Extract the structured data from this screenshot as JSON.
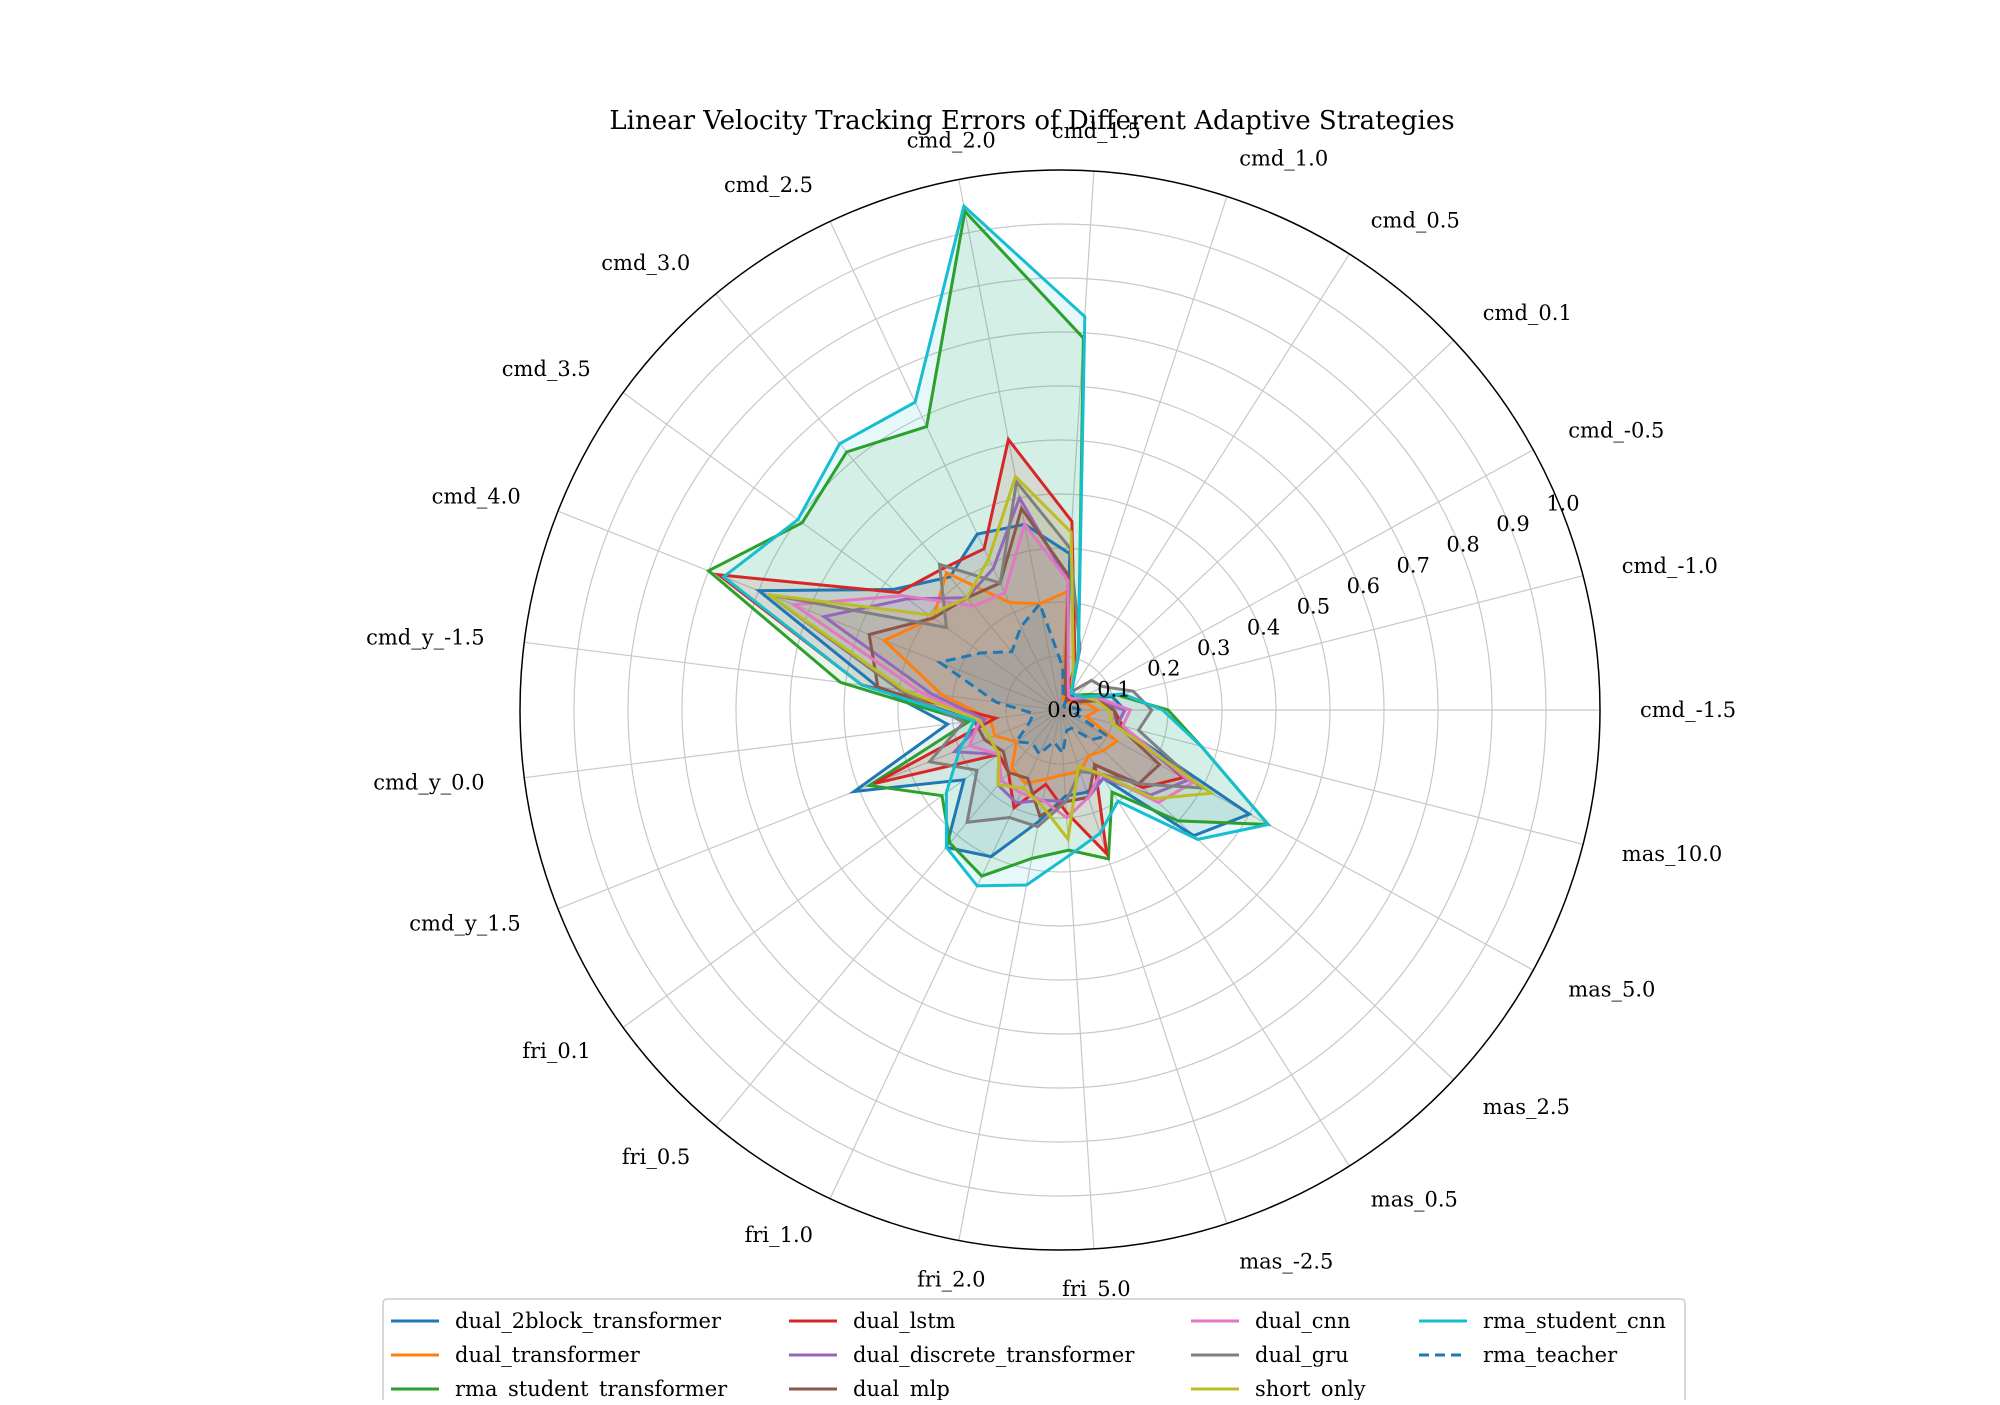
{
  "chart_data": {
    "type": "radar",
    "title": "Linear Velocity Tracking Errors of Different Adaptive Strategies",
    "categories": [
      "cmd_-1.5",
      "cmd_-1.0",
      "cmd_-0.5",
      "cmd_0.1",
      "cmd_0.5",
      "cmd_1.0",
      "cmd_1.5",
      "cmd_2.0",
      "cmd_2.5",
      "cmd_3.0",
      "cmd_3.5",
      "cmd_4.0",
      "cmd_y_-1.5",
      "cmd_y_0.0",
      "cmd_y_1.5",
      "fri_0.1",
      "fri_0.5",
      "fri_1.0",
      "fri_2.0",
      "fri_5.0",
      "mas_-2.5",
      "mas_0.5",
      "mas_2.5",
      "mas_5.0",
      "mas_10.0"
    ],
    "rlim": [
      0,
      1.0
    ],
    "r_ticks": [
      0.0,
      0.1,
      0.2,
      0.3,
      0.4,
      0.5,
      0.6,
      0.7,
      0.8,
      0.9,
      1.0
    ],
    "r_tick_labels": [
      "0.0",
      "0.1",
      "0.2",
      "0.3",
      "0.4",
      "0.5",
      "0.6",
      "0.7",
      "0.8",
      "0.9",
      "1.0"
    ],
    "grid": true,
    "legend": {
      "placement": "bottom",
      "columns": 4
    },
    "series": [
      {
        "name": "dual_2block_transformer",
        "color": "#1f77b4",
        "dashed": false,
        "fill": true,
        "values": [
          0.12,
          0.1,
          0.05,
          0.04,
          0.03,
          0.04,
          0.29,
          0.35,
          0.36,
          0.32,
          0.38,
          0.6,
          0.34,
          0.21,
          0.41,
          0.22,
          0.33,
          0.3,
          0.21,
          0.16,
          0.16,
          0.15,
          0.34,
          0.4,
          0.11
        ]
      },
      {
        "name": "dual_transformer",
        "color": "#ff7f0e",
        "dashed": false,
        "fill": false,
        "values": [
          0.07,
          0.05,
          0.03,
          0.02,
          0.02,
          0.02,
          0.22,
          0.2,
          0.22,
          0.33,
          0.29,
          0.35,
          0.22,
          0.13,
          0.13,
          0.1,
          0.14,
          0.15,
          0.13,
          0.12,
          0.12,
          0.1,
          0.11,
          0.12,
          0.05
        ]
      },
      {
        "name": "rma_student_transformer",
        "color": "#2ca02c",
        "dashed": false,
        "fill": true,
        "values": [
          0.2,
          0.11,
          0.06,
          0.04,
          0.04,
          0.11,
          0.69,
          0.94,
          0.58,
          0.62,
          0.59,
          0.7,
          0.41,
          0.17,
          0.38,
          0.27,
          0.32,
          0.34,
          0.28,
          0.26,
          0.29,
          0.18,
          0.3,
          0.44,
          0.27
        ]
      },
      {
        "name": "dual_lstm",
        "color": "#d62728",
        "dashed": false,
        "fill": false,
        "values": [
          0.1,
          0.07,
          0.04,
          0.03,
          0.02,
          0.09,
          0.35,
          0.51,
          0.33,
          0.34,
          0.37,
          0.68,
          0.37,
          0.12,
          0.37,
          0.14,
          0.15,
          0.2,
          0.14,
          0.19,
          0.28,
          0.12,
          0.21,
          0.26,
          0.12
        ]
      },
      {
        "name": "dual_discrete_transformer",
        "color": "#9467bd",
        "dashed": false,
        "fill": false,
        "values": [
          0.12,
          0.07,
          0.04,
          0.03,
          0.03,
          0.03,
          0.24,
          0.4,
          0.29,
          0.27,
          0.35,
          0.47,
          0.24,
          0.14,
          0.21,
          0.14,
          0.18,
          0.19,
          0.17,
          0.17,
          0.17,
          0.15,
          0.23,
          0.27,
          0.11
        ]
      },
      {
        "name": "dual_mlp",
        "color": "#8c564b",
        "dashed": false,
        "fill": false,
        "values": [
          0.1,
          0.07,
          0.03,
          0.03,
          0.03,
          0.03,
          0.25,
          0.38,
          0.26,
          0.27,
          0.29,
          0.38,
          0.34,
          0.16,
          0.15,
          0.13,
          0.15,
          0.14,
          0.2,
          0.17,
          0.17,
          0.12,
          0.2,
          0.21,
          0.11
        ]
      },
      {
        "name": "dual_cnn",
        "color": "#e377c2",
        "dashed": false,
        "fill": false,
        "values": [
          0.13,
          0.08,
          0.05,
          0.03,
          0.03,
          0.05,
          0.24,
          0.35,
          0.24,
          0.25,
          0.36,
          0.53,
          0.26,
          0.15,
          0.18,
          0.14,
          0.17,
          0.17,
          0.17,
          0.2,
          0.17,
          0.14,
          0.25,
          0.28,
          0.12
        ]
      },
      {
        "name": "dual_gru",
        "color": "#7f7f7f",
        "dashed": false,
        "fill": false,
        "values": [
          0.17,
          0.14,
          0.09,
          0.08,
          0.04,
          0.12,
          0.3,
          0.43,
          0.26,
          0.35,
          0.26,
          0.58,
          0.3,
          0.18,
          0.26,
          0.19,
          0.27,
          0.22,
          0.22,
          0.17,
          0.12,
          0.14,
          0.2,
          0.3,
          0.15
        ]
      },
      {
        "name": "short_only",
        "color": "#bcbd22",
        "dashed": false,
        "fill": false,
        "values": [
          0.09,
          0.07,
          0.05,
          0.04,
          0.04,
          0.08,
          0.33,
          0.44,
          0.31,
          0.27,
          0.3,
          0.58,
          0.29,
          0.15,
          0.14,
          0.14,
          0.18,
          0.16,
          0.18,
          0.24,
          0.11,
          0.14,
          0.24,
          0.32,
          0.1
        ]
      },
      {
        "name": "rma_student_cnn",
        "color": "#17becf",
        "dashed": false,
        "fill": true,
        "values": [
          0.19,
          0.12,
          0.05,
          0.04,
          0.04,
          0.11,
          0.73,
          0.95,
          0.63,
          0.64,
          0.6,
          0.67,
          0.37,
          0.16,
          0.2,
          0.26,
          0.33,
          0.36,
          0.33,
          0.27,
          0.24,
          0.2,
          0.35,
          0.44,
          0.27
        ]
      },
      {
        "name": "rma_teacher",
        "color": "#1f77b4",
        "dashed": true,
        "fill": false,
        "values": [
          0.04,
          0.02,
          0.01,
          0.01,
          0.02,
          0.02,
          0.08,
          0.2,
          0.17,
          0.14,
          0.18,
          0.24,
          0.12,
          0.05,
          0.06,
          0.1,
          0.08,
          0.09,
          0.06,
          0.08,
          0.04,
          0.04,
          0.08,
          0.1,
          0.03
        ]
      }
    ]
  }
}
